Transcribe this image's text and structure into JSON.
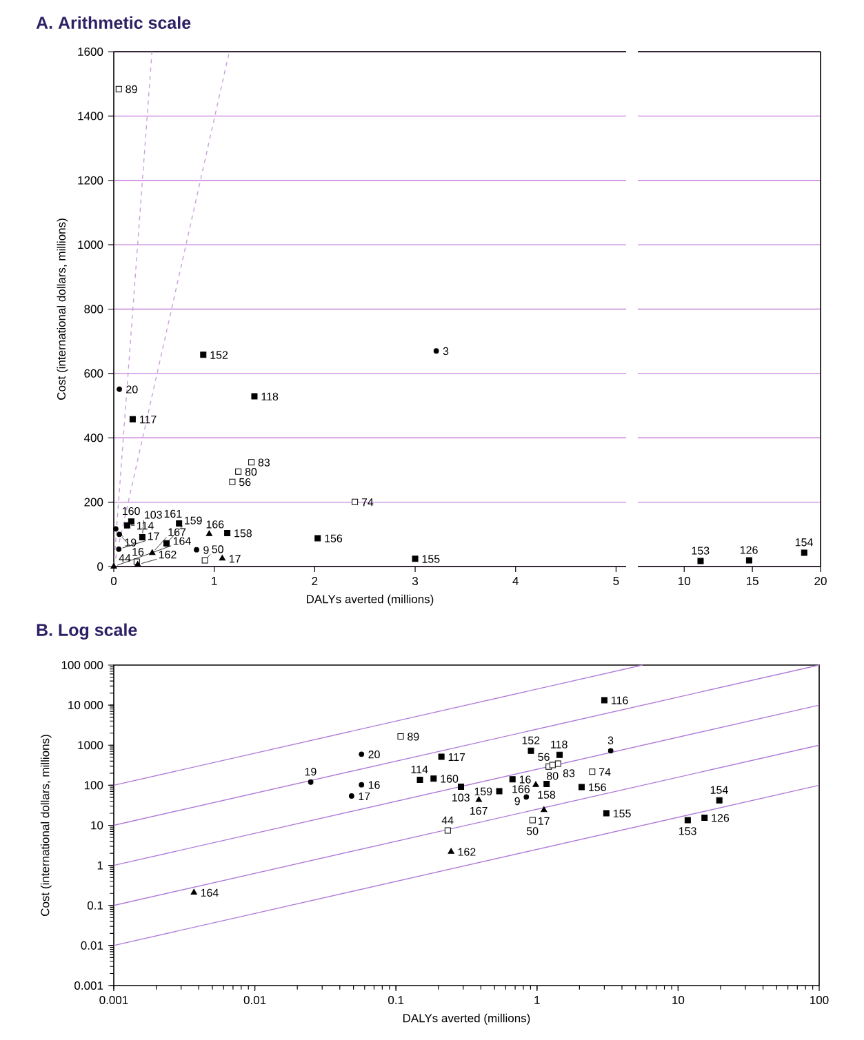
{
  "chart_data": [
    {
      "type": "scatter",
      "title": "A. Arithmetic scale",
      "xlabel": "DALYs averted (millions)",
      "ylabel": "Cost (international dollars, millions)",
      "xlim": [
        0,
        5.1
      ],
      "ylim": [
        0,
        1600
      ],
      "xticks": [
        0,
        1,
        2,
        3,
        4,
        5
      ],
      "yticks": [
        0,
        200,
        400,
        600,
        800,
        1000,
        1200,
        1400,
        1600
      ],
      "grid": "y",
      "series": [
        {
          "type": "scatter",
          "marker": "circle",
          "color": "#000000",
          "x": [
            0.055,
            0.02,
            0.055,
            0.05,
            0.824,
            3.21
          ],
          "values": [
            551,
            117,
            100,
            54,
            52,
            670
          ]
        },
        {
          "type": "scatter",
          "marker": "square",
          "color": "#000000",
          "x": [
            0.891,
            1.4,
            0.188,
            0.174,
            0.133,
            0.284,
            0.65,
            0.525,
            1.13,
            2.03,
            3.0
          ],
          "values": [
            658,
            529,
            458,
            140,
            128,
            91,
            134,
            72,
            104,
            88,
            24
          ]
        },
        {
          "type": "scatter",
          "marker": "square",
          "color": "#ffffff",
          "x": [
            0.05,
            1.37,
            1.24,
            1.18,
            2.4,
            0.229,
            0.907
          ],
          "values": [
            1484,
            324,
            295,
            263,
            201,
            15,
            19
          ]
        },
        {
          "type": "scatter",
          "marker": "triangle",
          "color": "#000000",
          "x": [
            0.95,
            0.383,
            1.08,
            0.238,
            0
          ],
          "values": [
            101,
            42,
            25,
            6,
            0
          ]
        },
        {
          "type": "line",
          "line_style": "dashed",
          "color": "#c9a0d8",
          "x": [
            0,
            0.38
          ],
          "values": [
            0,
            1600
          ]
        },
        {
          "type": "line",
          "line_style": "dashed",
          "color": "#c9a0d8",
          "x": [
            0,
            1.15
          ],
          "values": [
            0,
            1600
          ]
        }
      ],
      "annotations": [
        {
          "text": "114",
          "x": 0.133,
          "y": 128
        },
        {
          "text": "160",
          "x": 0.174,
          "y": 140
        },
        {
          "text": "19",
          "x": 0.02,
          "y": 117
        },
        {
          "text": "16",
          "x": 0.055,
          "y": 100
        },
        {
          "text": "17",
          "x": 0.05,
          "y": 54
        },
        {
          "text": "103",
          "x": 0.284,
          "y": 91
        },
        {
          "text": "164",
          "x": 0,
          "y": 0
        },
        {
          "text": "44",
          "x": 0.229,
          "y": 15
        },
        {
          "text": "162",
          "x": 0.238,
          "y": 6
        },
        {
          "text": "167",
          "x": 0.383,
          "y": 42
        },
        {
          "text": "159",
          "x": 0.525,
          "y": 72
        },
        {
          "text": "161",
          "x": 0.65,
          "y": 134
        },
        {
          "text": "166",
          "x": 0.95,
          "y": 101
        },
        {
          "text": "158",
          "x": 1.13,
          "y": 104
        },
        {
          "text": "9",
          "x": 0.824,
          "y": 52
        },
        {
          "text": "17",
          "x": 1.08,
          "y": 25
        },
        {
          "text": "50",
          "x": 0.907,
          "y": 19
        },
        {
          "text": "56",
          "x": 1.18,
          "y": 263
        },
        {
          "text": "80",
          "x": 1.24,
          "y": 295
        },
        {
          "text": "83",
          "x": 1.37,
          "y": 324
        },
        {
          "text": "74",
          "x": 2.4,
          "y": 201
        },
        {
          "text": "156",
          "x": 2.03,
          "y": 88
        },
        {
          "text": "155",
          "x": 3.0,
          "y": 24
        },
        {
          "text": "20",
          "x": 0.055,
          "y": 551
        },
        {
          "text": "117",
          "x": 0.188,
          "y": 458
        },
        {
          "text": "152",
          "x": 0.891,
          "y": 658
        },
        {
          "text": "118",
          "x": 1.4,
          "y": 529
        },
        {
          "text": "3",
          "x": 3.21,
          "y": 670
        },
        {
          "text": "89",
          "x": 0.05,
          "y": 1484
        }
      ]
    },
    {
      "type": "scatter",
      "xlim": [
        6.6,
        20
      ],
      "ylim": [
        0,
        1600
      ],
      "xticks": [
        10,
        15,
        20
      ],
      "yticks": [
        0,
        200,
        400,
        600,
        800,
        1000,
        1200,
        1400,
        1600
      ],
      "grid": "y",
      "tick_labels": "x",
      "series": [
        {
          "type": "scatter",
          "marker": "square",
          "color": "#000000",
          "x": [
            11.2,
            14.76,
            18.8
          ],
          "values": [
            17,
            19,
            43
          ]
        }
      ],
      "annotations": [
        {
          "text": "153",
          "x": 11.2,
          "y": 17
        },
        {
          "text": "126",
          "x": 14.76,
          "y": 19
        },
        {
          "text": "154",
          "x": 18.8,
          "y": 43
        }
      ]
    },
    {
      "type": "scatter",
      "title": "B. Log scale",
      "xlabel": "DALYs averted (millions)",
      "ylabel": "Cost (international dollars, millions)",
      "log": "xy",
      "xlim": [
        0.001,
        100
      ],
      "ylim": [
        0.001,
        100000
      ],
      "xticks": [
        0.001,
        0.01,
        0.1,
        1,
        10,
        100
      ],
      "yticks": [
        0.001,
        0.01,
        0.1,
        1,
        10,
        100,
        1000,
        {
          "value": 10000,
          "label": "10 000"
        },
        {
          "value": 100000,
          "label": "100 000"
        }
      ],
      "series": [
        {
          "type": "line",
          "color": "#b07cd8",
          "x": [
            0.001,
            100
          ],
          "values": [
            0.01,
            100
          ]
        },
        {
          "type": "line",
          "color": "#b07cd8",
          "x": [
            0.001,
            100
          ],
          "values": [
            0.1,
            1000
          ]
        },
        {
          "type": "line",
          "color": "#b07cd8",
          "x": [
            0.001,
            100
          ],
          "values": [
            1,
            10000
          ]
        },
        {
          "type": "line",
          "color": "#b07cd8",
          "x": [
            0.001,
            100
          ],
          "values": [
            10,
            100000
          ]
        },
        {
          "type": "line",
          "color": "#b07cd8",
          "x": [
            0.001,
            5.6
          ],
          "values": [
            100,
            100000
          ]
        },
        {
          "type": "scatter",
          "marker": "circle",
          "color": "#000000",
          "x": [
            0.057,
            0.0249,
            0.057,
            0.0485,
            0.84,
            3.33
          ],
          "values": [
            596,
            120,
            103,
            54,
            51,
            726
          ]
        },
        {
          "type": "scatter",
          "marker": "square",
          "color": "#000000",
          "x": [
            0.21,
            0.148,
            0.185,
            0.289,
            3.0,
            0.906,
            1.445,
            0.67,
            1.17,
            2.07,
            0.54,
            3.1,
            19.6,
            11.7,
            15.4
          ],
          "values": [
            516,
            137,
            147,
            92,
            13300,
            726,
            574,
            141,
            108,
            90,
            71,
            20,
            42,
            13.4,
            15.5
          ]
        },
        {
          "type": "scatter",
          "marker": "square",
          "color": "#ffffff",
          "x": [
            0.108,
            0.233,
            1.21,
            1.29,
            1.41,
            2.46,
            0.93
          ],
          "values": [
            1650,
            7.4,
            293,
            319,
            348,
            218,
            13.4
          ]
        },
        {
          "type": "scatter",
          "marker": "triangle",
          "color": "#000000",
          "x": [
            0.387,
            0.246,
            0.0037,
            0.98,
            1.12
          ],
          "values": [
            43,
            2.2,
            0.21,
            102,
            24
          ]
        }
      ],
      "annotations": [
        {
          "text": "56",
          "x": 1.21,
          "y": 293
        },
        {
          "text": "80",
          "x": 1.29,
          "y": 319
        },
        {
          "text": "83",
          "x": 1.41,
          "y": 348
        },
        {
          "text": "152",
          "x": 0.906,
          "y": 726
        },
        {
          "text": "118",
          "x": 1.445,
          "y": 574
        },
        {
          "text": "16",
          "x": 0.67,
          "y": 141
        },
        {
          "text": "166",
          "x": 0.98,
          "y": 102
        },
        {
          "text": "158",
          "x": 1.17,
          "y": 108
        },
        {
          "text": "9",
          "x": 0.84,
          "y": 51
        },
        {
          "text": "159",
          "x": 0.54,
          "y": 71
        },
        {
          "text": "17",
          "x": 1.12,
          "y": 24
        },
        {
          "text": "50",
          "x": 0.93,
          "y": 13.4
        },
        {
          "text": "74",
          "x": 2.46,
          "y": 218
        },
        {
          "text": "156",
          "x": 2.07,
          "y": 90
        },
        {
          "text": "3",
          "x": 3.33,
          "y": 726
        },
        {
          "text": "155",
          "x": 3.1,
          "y": 20
        },
        {
          "text": "116",
          "x": 3.0,
          "y": 13300
        },
        {
          "text": "114",
          "x": 0.148,
          "y": 137
        },
        {
          "text": "160",
          "x": 0.185,
          "y": 147
        },
        {
          "text": "103",
          "x": 0.289,
          "y": 92
        },
        {
          "text": "117",
          "x": 0.21,
          "y": 516
        },
        {
          "text": "167",
          "x": 0.387,
          "y": 43
        },
        {
          "text": "44",
          "x": 0.233,
          "y": 7.4
        },
        {
          "text": "162",
          "x": 0.246,
          "y": 2.2
        },
        {
          "text": "89",
          "x": 0.108,
          "y": 1650
        },
        {
          "text": "20",
          "x": 0.057,
          "y": 596
        },
        {
          "text": "19",
          "x": 0.0249,
          "y": 120
        },
        {
          "text": "16",
          "x": 0.057,
          "y": 103
        },
        {
          "text": "17",
          "x": 0.0485,
          "y": 54
        },
        {
          "text": "164",
          "x": 0.0037,
          "y": 0.21
        },
        {
          "text": "153",
          "x": 11.7,
          "y": 13.4
        },
        {
          "text": "126",
          "x": 15.4,
          "y": 15.5
        },
        {
          "text": "154",
          "x": 19.6,
          "y": 42
        }
      ]
    }
  ]
}
